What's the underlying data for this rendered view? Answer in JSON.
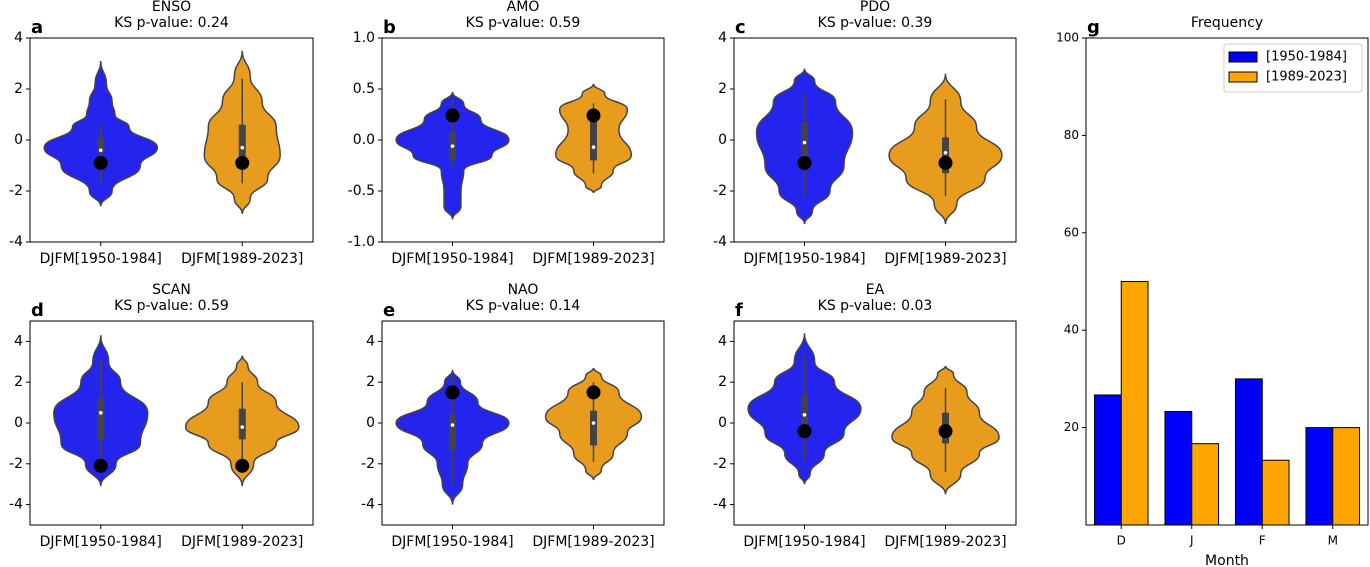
{
  "chart_data": [
    {
      "type": "violin",
      "label": "a",
      "title": "ENSO",
      "subtitle": "KS p-value: 0.24",
      "categories": [
        "DJFM[1950-1984]",
        "DJFM[1989-2023]"
      ],
      "ylim": [
        -4,
        4
      ],
      "yticks": [
        -4,
        -2,
        0,
        2,
        4
      ],
      "violins": [
        {
          "color": "#2424ee",
          "profile": {
            "y": [
              -2.6,
              -2,
              -1,
              -0.3,
              0.5,
              1,
              1.5,
              2.2,
              3.1
            ],
            "width": [
              0,
              0.2,
              0.7,
              1.0,
              0.5,
              0.25,
              0.2,
              0.1,
              0
            ]
          },
          "box": {
            "whisker_low": -1.7,
            "q1": -0.5,
            "median": -0.4,
            "q3": 0.1,
            "whisker_high": 0.6
          },
          "marker": -0.9
        },
        {
          "color": "#e89c1e",
          "profile": {
            "y": [
              -2.9,
              -2.3,
              -1.5,
              -0.6,
              0.5,
              1.5,
              2.5,
              3.5
            ],
            "width": [
              0,
              0.14,
              0.45,
              0.67,
              0.6,
              0.35,
              0.14,
              0
            ]
          },
          "box": {
            "whisker_low": -1.7,
            "q1": -0.9,
            "median": -0.3,
            "q3": 0.6,
            "whisker_high": 2.4
          },
          "marker": -0.9
        }
      ]
    },
    {
      "type": "violin",
      "label": "b",
      "title": "AMO",
      "subtitle": "KS p-value: 0.59",
      "categories": [
        "DJFM[1950-1984]",
        "DJFM[1989-2023]"
      ],
      "ylim": [
        -1,
        1
      ],
      "yticks": [
        {
          "value": -1,
          "label": "-1.0"
        },
        {
          "value": -0.5,
          "label": "-0.5"
        },
        {
          "value": 0,
          "label": "0.0"
        },
        {
          "value": 0.5,
          "label": "0.5"
        },
        {
          "value": 1,
          "label": "1.0"
        }
      ],
      "violins": [
        {
          "color": "#2424ee",
          "profile": {
            "y": [
              -0.78,
              -0.65,
              -0.5,
              -0.3,
              -0.15,
              0,
              0.2,
              0.35,
              0.47
            ],
            "width": [
              0,
              0.15,
              0.15,
              0.2,
              0.7,
              1.0,
              0.5,
              0.2,
              0
            ]
          },
          "box": {
            "whisker_low": -0.27,
            "q1": -0.2,
            "median": -0.06,
            "q3": 0.08,
            "whisker_high": 0.4
          },
          "marker": 0.24
        },
        {
          "color": "#e89c1e",
          "profile": {
            "y": [
              -0.52,
              -0.45,
              -0.3,
              -0.15,
              0.1,
              0.3,
              0.45,
              0.55
            ],
            "width": [
              0,
              0.14,
              0.35,
              0.67,
              0.45,
              0.6,
              0.2,
              0
            ]
          },
          "box": {
            "whisker_low": -0.33,
            "q1": -0.2,
            "median": -0.07,
            "q3": 0.2,
            "whisker_high": 0.36
          },
          "marker": 0.24
        }
      ]
    },
    {
      "type": "violin",
      "label": "c",
      "title": "PDO",
      "subtitle": "KS p-value: 0.39",
      "categories": [
        "DJFM[1950-1984]",
        "DJFM[1989-2023]"
      ],
      "ylim": [
        -4,
        4
      ],
      "yticks": [
        -4,
        -2,
        0,
        2,
        4
      ],
      "violins": [
        {
          "color": "#2424ee",
          "profile": {
            "y": [
              -3.3,
              -2.8,
              -2,
              -1,
              0.3,
              1.5,
              2.3,
              2.8
            ],
            "width": [
              0,
              0.14,
              0.45,
              0.7,
              0.85,
              0.55,
              0.18,
              0
            ]
          },
          "box": {
            "whisker_low": -2.2,
            "q1": -0.9,
            "median": -0.1,
            "q3": 0.7,
            "whisker_high": 1.8
          },
          "marker": -0.9
        },
        {
          "color": "#e89c1e",
          "profile": {
            "y": [
              -3.3,
              -2.5,
              -1.5,
              -0.6,
              0.5,
              1.5,
              2.6
            ],
            "width": [
              0,
              0.2,
              0.7,
              1.0,
              0.55,
              0.27,
              0
            ]
          },
          "box": {
            "whisker_low": -2.2,
            "q1": -1.3,
            "median": -0.5,
            "q3": 0.1,
            "whisker_high": 1.6
          },
          "marker": -0.9
        }
      ]
    },
    {
      "type": "violin",
      "label": "d",
      "title": "SCAN",
      "subtitle": "KS p-value: 0.59",
      "categories": [
        "DJFM[1950-1984]",
        "DJFM[1989-2023]"
      ],
      "ylim": [
        -5,
        5
      ],
      "yticks": [
        -4,
        -2,
        0,
        2,
        4
      ],
      "violins": [
        {
          "color": "#2424ee",
          "profile": {
            "y": [
              -3.1,
              -2,
              -1,
              0.5,
              2,
              3,
              4.3
            ],
            "width": [
              0,
              0.27,
              0.7,
              0.83,
              0.35,
              0.14,
              0
            ]
          },
          "box": {
            "whisker_low": -2.0,
            "q1": -0.8,
            "median": 0.5,
            "q3": 1.2,
            "whisker_high": 3.2
          },
          "marker": -2.1
        },
        {
          "color": "#e89c1e",
          "profile": {
            "y": [
              -3.1,
              -2,
              -1,
              -0.2,
              1,
              2,
              2.8,
              3.3
            ],
            "width": [
              0,
              0.2,
              0.6,
              1.0,
              0.6,
              0.27,
              0.1,
              0
            ]
          },
          "box": {
            "whisker_low": -2.2,
            "q1": -0.8,
            "median": -0.2,
            "q3": 0.7,
            "whisker_high": 2.0
          },
          "marker": -2.1
        }
      ]
    },
    {
      "type": "violin",
      "label": "e",
      "title": "NAO",
      "subtitle": "KS p-value: 0.14",
      "categories": [
        "DJFM[1950-1984]",
        "DJFM[1989-2023]"
      ],
      "ylim": [
        -5,
        5
      ],
      "yticks": [
        -4,
        -2,
        0,
        2,
        4
      ],
      "violins": [
        {
          "color": "#2424ee",
          "profile": {
            "y": [
              -4,
              -3,
              -2,
              -1,
              0,
              1,
              2,
              2.6
            ],
            "width": [
              0,
              0.18,
              0.27,
              0.53,
              1.0,
              0.45,
              0.14,
              0
            ]
          },
          "box": {
            "whisker_low": -3.0,
            "q1": -1.3,
            "median": -0.1,
            "q3": 0.4,
            "whisker_high": 2.3
          },
          "marker": 1.5
        },
        {
          "color": "#e89c1e",
          "profile": {
            "y": [
              -2.8,
              -2.3,
              -1.5,
              -0.5,
              0.3,
              1.5,
              2.3,
              2.7
            ],
            "width": [
              0,
              0.14,
              0.35,
              0.6,
              0.85,
              0.45,
              0.14,
              0
            ]
          },
          "box": {
            "whisker_low": -1.9,
            "q1": -1.1,
            "median": 0,
            "q3": 0.6,
            "whisker_high": 2.0
          },
          "marker": 1.5
        }
      ]
    },
    {
      "type": "violin",
      "label": "f",
      "title": "EA",
      "subtitle": "KS p-value: 0.03",
      "categories": [
        "DJFM[1950-1984]",
        "DJFM[1989-2023]"
      ],
      "ylim": [
        -5,
        5
      ],
      "yticks": [
        -4,
        -2,
        0,
        2,
        4
      ],
      "violins": [
        {
          "color": "#2424ee",
          "profile": {
            "y": [
              -3,
              -2.5,
              -1.5,
              -0.5,
              0.7,
              2,
              3,
              4.4
            ],
            "width": [
              0,
              0.1,
              0.35,
              0.7,
              1.0,
              0.53,
              0.18,
              0
            ]
          },
          "box": {
            "whisker_low": -1.9,
            "q1": -0.6,
            "median": 0.4,
            "q3": 1.4,
            "whisker_high": 3.4
          },
          "marker": -0.4
        },
        {
          "color": "#e89c1e",
          "profile": {
            "y": [
              -3.5,
              -2.5,
              -1.5,
              -0.7,
              0.5,
              1.5,
              2.4,
              2.8
            ],
            "width": [
              0,
              0.27,
              0.6,
              0.95,
              0.6,
              0.38,
              0.14,
              0
            ]
          },
          "box": {
            "whisker_low": -2.4,
            "q1": -1.0,
            "median": -0.4,
            "q3": 0.5,
            "whisker_high": 1.7
          },
          "marker": -0.4
        }
      ]
    },
    {
      "type": "bar",
      "label": "g",
      "title": "Frequency",
      "x_label": "Month",
      "categories": [
        "D",
        "J",
        "F",
        "M"
      ],
      "series": [
        {
          "name": "[1950-1984]",
          "color": "#0000ff",
          "values": [
            26.7,
            23.3,
            30,
            20
          ]
        },
        {
          "name": "[1989-2023]",
          "color": "#ffa500",
          "values": [
            50,
            16.7,
            13.3,
            20
          ]
        }
      ],
      "ylim": [
        0,
        100
      ],
      "yticks": [
        20,
        40,
        60,
        80,
        100
      ],
      "legend": "upper right"
    }
  ]
}
